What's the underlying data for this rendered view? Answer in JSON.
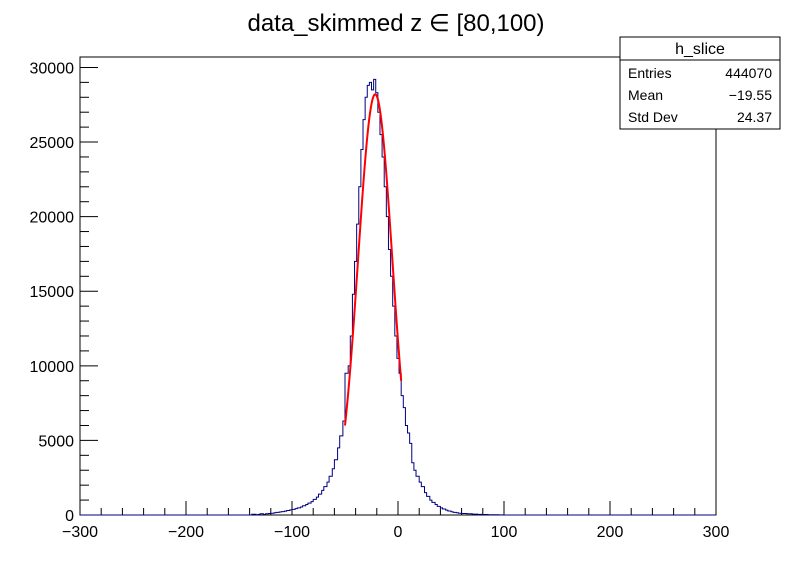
{
  "chart_data": {
    "type": "histogram",
    "title": "data_skimmed z  ∈ [80,100)",
    "xlabel": "",
    "ylabel": "",
    "xlim": [
      -300,
      300
    ],
    "ylim": [
      0,
      30700
    ],
    "x_ticks": [
      -300,
      -200,
      -100,
      0,
      100,
      200,
      300
    ],
    "y_ticks": [
      0,
      5000,
      10000,
      15000,
      20000,
      25000,
      30000
    ],
    "grid": false,
    "series": [
      {
        "kind": "histogram",
        "color": "#000080",
        "bins": [
          [
            -300,
            0
          ],
          [
            -140,
            0
          ],
          [
            -138,
            50
          ],
          [
            -134,
            20
          ],
          [
            -132,
            40
          ],
          [
            -130,
            80
          ],
          [
            -127,
            40
          ],
          [
            -125,
            80
          ],
          [
            -122,
            100
          ],
          [
            -120,
            120
          ],
          [
            -117,
            150
          ],
          [
            -115,
            180
          ],
          [
            -112,
            200
          ],
          [
            -110,
            230
          ],
          [
            -107,
            260
          ],
          [
            -105,
            300
          ],
          [
            -102,
            340
          ],
          [
            -100,
            380
          ],
          [
            -97,
            430
          ],
          [
            -95,
            480
          ],
          [
            -92,
            540
          ],
          [
            -90,
            620
          ],
          [
            -87,
            700
          ],
          [
            -85,
            800
          ],
          [
            -82,
            900
          ],
          [
            -80,
            1050
          ],
          [
            -77,
            1200
          ],
          [
            -75,
            1400
          ],
          [
            -72,
            1650
          ],
          [
            -70,
            1900
          ],
          [
            -67,
            2200
          ],
          [
            -65,
            2600
          ],
          [
            -62,
            3100
          ],
          [
            -60,
            3700
          ],
          [
            -57,
            4500
          ],
          [
            -55,
            5300
          ],
          [
            -52,
            6300
          ],
          [
            -50,
            9500
          ],
          [
            -47,
            10000
          ],
          [
            -45,
            12000
          ],
          [
            -43,
            14800
          ],
          [
            -41,
            17000
          ],
          [
            -39,
            19500
          ],
          [
            -37,
            22000
          ],
          [
            -35,
            24500
          ],
          [
            -33,
            26500
          ],
          [
            -31,
            28000
          ],
          [
            -29,
            28800
          ],
          [
            -27,
            29000
          ],
          [
            -25,
            28500
          ],
          [
            -23,
            29200
          ],
          [
            -21,
            28300
          ],
          [
            -19,
            27000
          ],
          [
            -17,
            25500
          ],
          [
            -15,
            24000
          ],
          [
            -13,
            22000
          ],
          [
            -11,
            20000
          ],
          [
            -9,
            17800
          ],
          [
            -7,
            16000
          ],
          [
            -5,
            14000
          ],
          [
            -3,
            12000
          ],
          [
            -1,
            10500
          ],
          [
            1,
            9500
          ],
          [
            3,
            8000
          ],
          [
            5,
            7200
          ],
          [
            7,
            6000
          ],
          [
            9,
            5500
          ],
          [
            11,
            4800
          ],
          [
            13,
            3500
          ],
          [
            15,
            3000
          ],
          [
            17,
            2600
          ],
          [
            20,
            2200
          ],
          [
            22,
            1900
          ],
          [
            25,
            1500
          ],
          [
            27,
            1250
          ],
          [
            30,
            1000
          ],
          [
            32,
            850
          ],
          [
            35,
            700
          ],
          [
            37,
            580
          ],
          [
            40,
            480
          ],
          [
            42,
            400
          ],
          [
            45,
            330
          ],
          [
            47,
            270
          ],
          [
            50,
            220
          ],
          [
            52,
            180
          ],
          [
            55,
            150
          ],
          [
            57,
            120
          ],
          [
            60,
            100
          ],
          [
            65,
            80
          ],
          [
            70,
            60
          ],
          [
            75,
            40
          ],
          [
            80,
            30
          ],
          [
            85,
            20
          ],
          [
            90,
            15
          ],
          [
            95,
            10
          ],
          [
            100,
            0
          ],
          [
            300,
            0
          ]
        ]
      },
      {
        "kind": "fit",
        "color": "#ff0000",
        "function": "gaussian",
        "amplitude": 28200,
        "mean": -21.5,
        "sigma": 16.2,
        "range": [
          -50,
          3
        ]
      }
    ],
    "stats_box": {
      "title": "h_slice",
      "rows": [
        {
          "label": "Entries",
          "value": "444070"
        },
        {
          "label": "Mean",
          "value": "−19.55"
        },
        {
          "label": "Std Dev",
          "value": "24.37"
        }
      ]
    }
  }
}
